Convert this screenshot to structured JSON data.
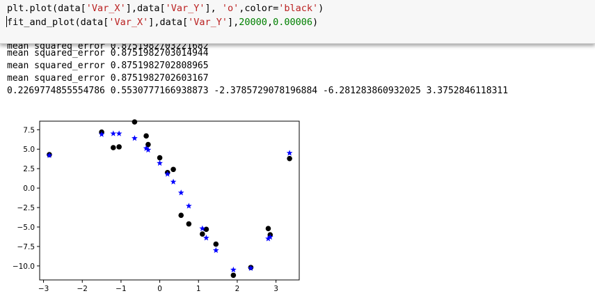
{
  "code": {
    "line1": {
      "a": "plt.plot(data[",
      "s1": "'Var_X'",
      "b": "],data[",
      "s2": "'Var_Y'",
      "c": "], ",
      "s3": "'o'",
      "d": ",color=",
      "s4": "'black'",
      "e": ")"
    },
    "line2": {
      "a": "fit_and_plot(data[",
      "s1": "'Var_X'",
      "b": "],data[",
      "s2": "'Var_Y'",
      "c": "],",
      "n1": "20000",
      "d": ",",
      "n2": "0.00006",
      "e": ")"
    }
  },
  "output_lines": [
    "mean squared_error 0.8751982703221682",
    "mean squared_error 0.8751982703014944",
    "mean squared_error 0.8751982702808965",
    "mean squared_error 0.8751982702603167",
    "0.2269774855554786 0.5530777166938873 -2.3785729078196884 -6.281283860932025 3.3752846118311"
  ],
  "chart_data": {
    "type": "scatter",
    "xlim": [
      -3.1,
      3.6
    ],
    "ylim": [
      -11.8,
      8.6
    ],
    "xticks": [
      -3,
      -2,
      -1,
      0,
      1,
      2,
      3
    ],
    "xtick_labels": [
      "−3",
      "−2",
      "−1",
      "0",
      "1",
      "2",
      "3"
    ],
    "yticks": [
      7.5,
      5.0,
      2.5,
      0.0,
      -2.5,
      -5.0,
      -7.5,
      -10.0
    ],
    "ytick_labels": [
      "7.5",
      "5.0",
      "2.5",
      "0.0",
      "−2.5",
      "−5.0",
      "−7.5",
      "−10.0"
    ],
    "grid": false,
    "series": [
      {
        "marker": "o",
        "color": "#000000",
        "x": [
          -2.85,
          -1.5,
          -1.2,
          -1.05,
          -0.65,
          -0.35,
          -0.3,
          0.0,
          0.2,
          0.35,
          0.55,
          0.75,
          1.1,
          1.2,
          1.45,
          1.9,
          2.35,
          2.8,
          2.85,
          3.35
        ],
        "y": [
          4.3,
          7.2,
          5.2,
          5.3,
          8.5,
          6.7,
          5.6,
          3.9,
          2.0,
          2.4,
          -3.5,
          -4.6,
          -5.9,
          -5.3,
          -7.2,
          -11.2,
          -10.2,
          -5.2,
          -6.0,
          3.8
        ]
      },
      {
        "marker": "*",
        "color": "#0000ff",
        "x": [
          -2.85,
          -1.5,
          -1.2,
          -1.05,
          -0.65,
          -0.35,
          -0.3,
          0.0,
          0.2,
          0.35,
          0.55,
          0.75,
          1.1,
          1.2,
          1.45,
          1.9,
          2.35,
          2.8,
          2.85,
          3.35
        ],
        "y": [
          4.2,
          6.9,
          7.0,
          7.0,
          6.4,
          5.1,
          4.9,
          3.2,
          1.8,
          0.8,
          -0.6,
          -2.3,
          -5.2,
          -6.4,
          -8.0,
          -10.5,
          -10.3,
          -6.5,
          -6.3,
          4.5
        ]
      }
    ]
  }
}
